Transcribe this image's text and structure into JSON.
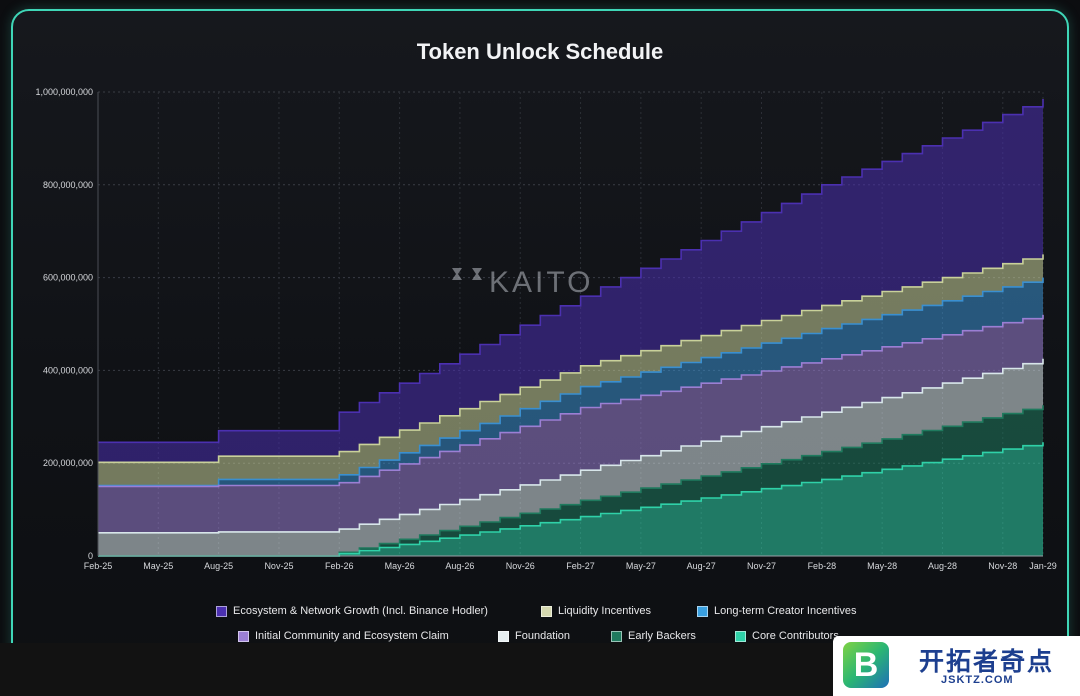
{
  "title": "Token Unlock Schedule",
  "watermark": "KAITO",
  "chart_data": {
    "type": "area",
    "title": "Token Unlock Schedule",
    "xlabel": "",
    "ylabel": "",
    "stacked": true,
    "step": true,
    "ylim": [
      0,
      1000000000
    ],
    "y_ticks": [
      "0",
      "200,000,000",
      "400,000,000",
      "600,000,000",
      "800,000,000",
      "1,000,000,000"
    ],
    "y_tick_values": [
      0,
      200000000,
      400000000,
      600000000,
      800000000,
      1000000000
    ],
    "x_ticks": [
      "Feb-25",
      "May-25",
      "Aug-25",
      "Nov-25",
      "Feb-26",
      "May-26",
      "Aug-26",
      "Nov-26",
      "Feb-27",
      "May-27",
      "Aug-27",
      "Nov-27",
      "Feb-28",
      "May-28",
      "Aug-28",
      "Nov-28",
      "Jan-29"
    ],
    "x_tick_months": [
      0,
      3,
      6,
      9,
      12,
      15,
      18,
      21,
      24,
      27,
      30,
      33,
      36,
      39,
      42,
      45,
      47
    ],
    "x_start": "Feb-25",
    "grid": true,
    "legend_position": "bottom",
    "series_top_to_bottom": [
      {
        "name": "Ecosystem & Network Growth (Incl. Binance Hodler)",
        "color": "#4b30b0",
        "cumulative_tops": [
          [
            0,
            245000000
          ],
          [
            6,
            270000000
          ],
          [
            12,
            310000000
          ],
          [
            24,
            560000000
          ],
          [
            36,
            800000000
          ],
          [
            47,
            985000000
          ]
        ]
      },
      {
        "name": "Liquidity Incentives",
        "color": "#c9d19a",
        "cumulative_tops": [
          [
            0,
            202000000
          ],
          [
            6,
            215000000
          ],
          [
            12,
            225000000
          ],
          [
            24,
            410000000
          ],
          [
            36,
            540000000
          ],
          [
            47,
            650000000
          ]
        ]
      },
      {
        "name": "Long-term Creator Incentives",
        "color": "#3a8fd0",
        "cumulative_tops": [
          [
            0,
            152000000
          ],
          [
            6,
            165000000
          ],
          [
            12,
            175000000
          ],
          [
            24,
            365000000
          ],
          [
            36,
            490000000
          ],
          [
            47,
            600000000
          ]
        ]
      },
      {
        "name": "Initial Community and Ecosystem Claim",
        "color": "#9b7fd4",
        "cumulative_tops": [
          [
            0,
            150000000
          ],
          [
            6,
            152000000
          ],
          [
            12,
            158000000
          ],
          [
            24,
            320000000
          ],
          [
            36,
            425000000
          ],
          [
            47,
            520000000
          ]
        ]
      },
      {
        "name": "Foundation",
        "color": "#d8e6ea",
        "cumulative_tops": [
          [
            0,
            50000000
          ],
          [
            6,
            52000000
          ],
          [
            12,
            58000000
          ],
          [
            24,
            185000000
          ],
          [
            36,
            310000000
          ],
          [
            47,
            425000000
          ]
        ]
      },
      {
        "name": "Early Backers",
        "color": "#1f7a5e",
        "cumulative_tops": [
          [
            0,
            0
          ],
          [
            11,
            0
          ],
          [
            12,
            8000000
          ],
          [
            24,
            120000000
          ],
          [
            36,
            225000000
          ],
          [
            47,
            325000000
          ]
        ]
      },
      {
        "name": "Core Contributors",
        "color": "#2fd1a8",
        "cumulative_tops": [
          [
            0,
            0
          ],
          [
            11,
            0
          ],
          [
            12,
            5000000
          ],
          [
            24,
            85000000
          ],
          [
            36,
            165000000
          ],
          [
            47,
            245000000
          ]
        ]
      }
    ]
  },
  "legend": [
    {
      "label": "Ecosystem & Network Growth (Incl. Binance Hodler)",
      "color": "#4b30b0"
    },
    {
      "label": "Liquidity Incentives",
      "color": "#d6d9b0"
    },
    {
      "label": "Long-term Creator Incentives",
      "color": "#3aa0e0"
    },
    {
      "label": "Initial Community and Ecosystem Claim",
      "color": "#9b7fd4"
    },
    {
      "label": "Foundation",
      "color": "#e6eef0"
    },
    {
      "label": "Early Backers",
      "color": "#1f7a5e"
    },
    {
      "label": "Core Contributors",
      "color": "#2fd1a8"
    }
  ],
  "badge": {
    "logo_letter": "B",
    "name": "开拓者奇点",
    "url": "JSKTZ.COM"
  }
}
